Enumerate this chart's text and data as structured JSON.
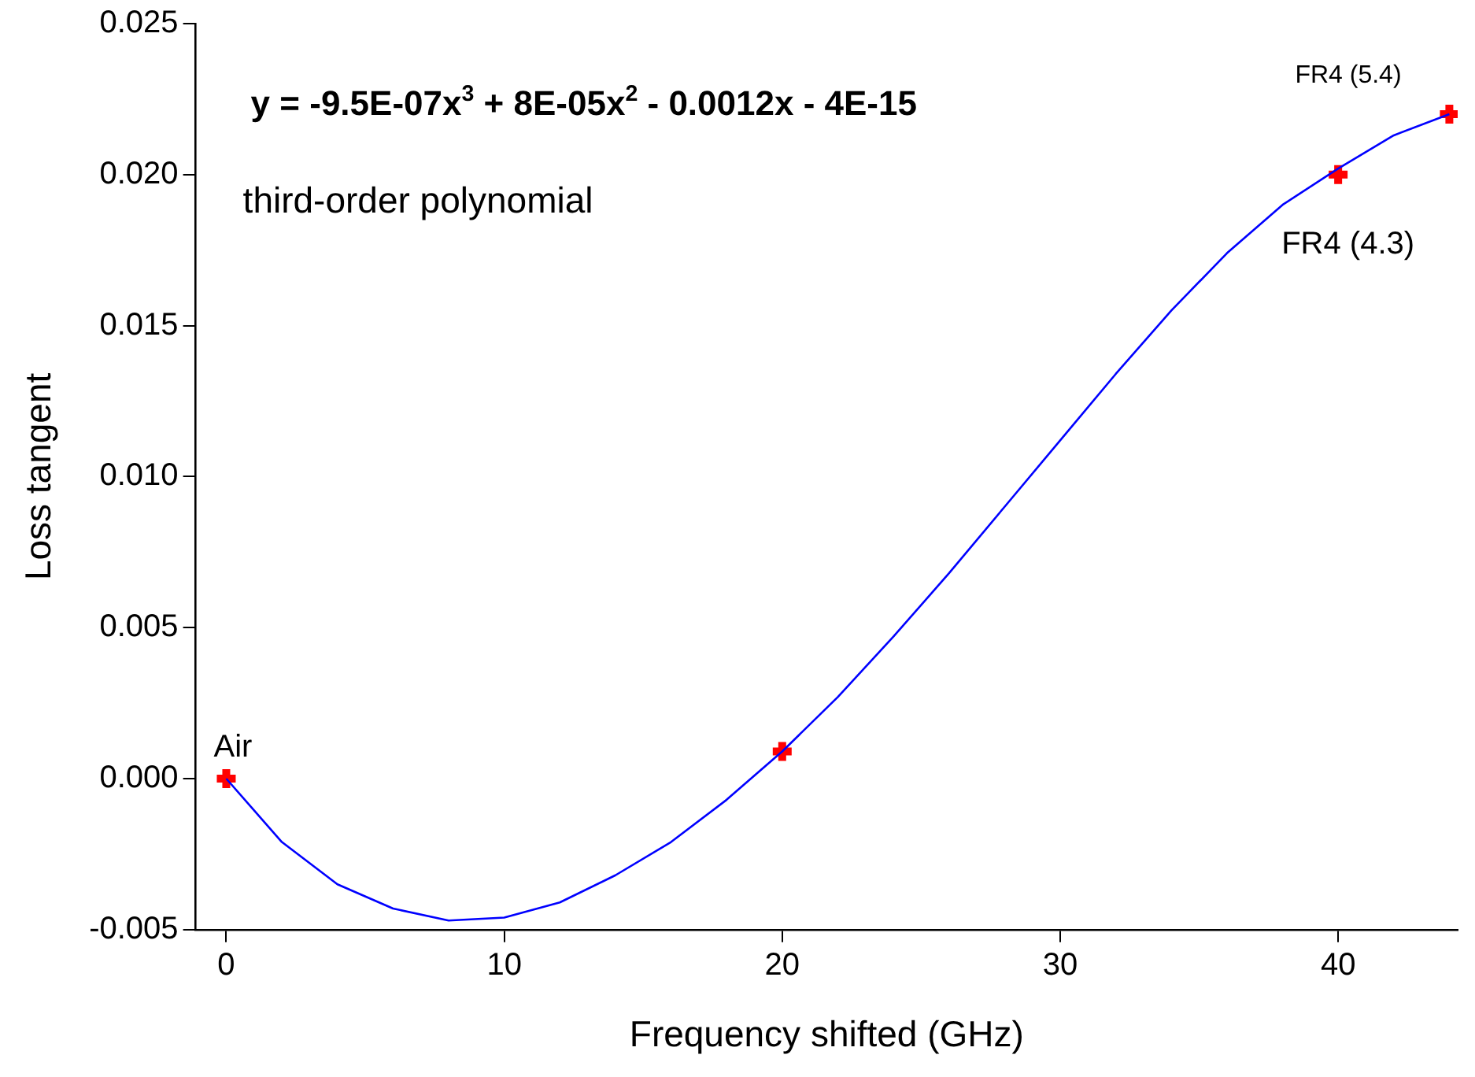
{
  "chart_data": {
    "type": "scatter",
    "xlabel": "Frequency shifted (GHz)",
    "ylabel": "Loss tangent",
    "xlim": [
      -1.1,
      44.3
    ],
    "xticks": [
      0,
      10,
      20,
      30,
      40
    ],
    "ylim": [
      -0.005,
      0.025
    ],
    "yticks": [
      {
        "value": -0.005,
        "label": "-0.005"
      },
      {
        "value": 0,
        "label": "0.000"
      },
      {
        "value": 0.005,
        "label": "0.005"
      },
      {
        "value": 0.01,
        "label": "0.010"
      },
      {
        "value": 0.015,
        "label": "0.015"
      },
      {
        "value": 0.02,
        "label": "0.020"
      },
      {
        "value": 0.025,
        "label": "0.025"
      }
    ],
    "grid": false,
    "legend": false,
    "series": [
      {
        "type": "line",
        "color": "#0000ff",
        "marker": "none",
        "x": [
          0,
          2,
          4,
          6,
          8,
          10,
          12,
          14,
          16,
          18,
          20,
          22,
          24,
          26,
          28,
          30,
          32,
          34,
          36,
          38,
          40,
          42,
          44
        ],
        "values": [
          0,
          -0.0021,
          -0.0035,
          -0.0043,
          -0.0047,
          -0.0046,
          -0.0041,
          -0.0032,
          -0.0021,
          -0.0007,
          0.0009,
          0.0027,
          0.0047,
          0.0068,
          0.009,
          0.0112,
          0.0134,
          0.0155,
          0.0174,
          0.019,
          0.0202,
          0.0213,
          0.022
        ]
      },
      {
        "type": "scatter",
        "color": "#ff0000",
        "marker": "cross",
        "x": [
          0,
          20,
          40,
          44
        ],
        "values": [
          0,
          0.0009,
          0.02,
          0.022
        ]
      }
    ],
    "annotations": [
      "y = -9.5E-07x$^{3}$ + 8E-05x$^{2}$ - 0.0012x - 4E-15",
      "third-order polynomial",
      {
        "text": "Air",
        "x": 0,
        "y": 0
      },
      {
        "text": "FR4 (4.3)",
        "x": 40,
        "y": 0.02
      },
      {
        "text": "FR4 (5.4)",
        "x": 44,
        "y": 0.022
      }
    ]
  }
}
